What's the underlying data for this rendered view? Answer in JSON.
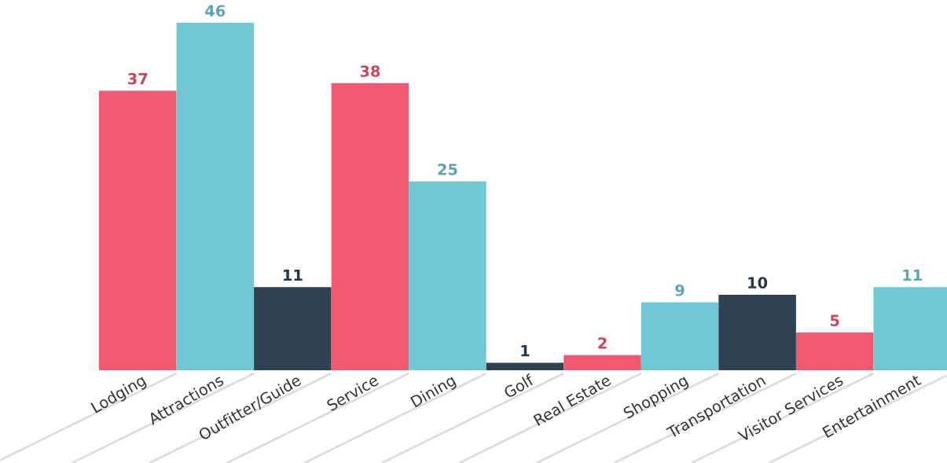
{
  "chart_data": {
    "type": "bar",
    "categories": [
      "Lodging",
      "Attractions",
      "Outfitter/Guide",
      "Service",
      "Dining",
      "Golf",
      "Real Estate",
      "Shopping",
      "Transportation",
      "Visitor Services",
      "Entertainment"
    ],
    "values": [
      37,
      46,
      11,
      38,
      25,
      1,
      2,
      9,
      10,
      5,
      11
    ],
    "colors": [
      "#f0596f",
      "#6fc8d4",
      "#2f4252",
      "#f0596f",
      "#6fc8d4",
      "#2f4252",
      "#f0596f",
      "#6fc8d4",
      "#2f4252",
      "#f0596f",
      "#6fc8d4"
    ],
    "data_labels": true,
    "legend": false
  }
}
